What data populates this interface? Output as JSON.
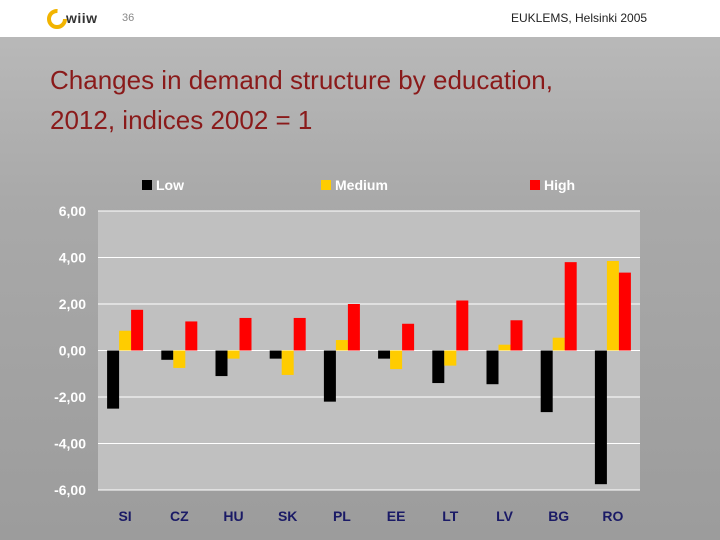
{
  "header": {
    "logo_text": "wiiw",
    "page_number": "36",
    "conference": "EUKLEMS, Helsinki 2005"
  },
  "slide": {
    "title_line1": "Changes in demand structure by education,",
    "title_line2": "2012, indices 2002 = 1"
  },
  "colors": {
    "low": "#000000",
    "medium": "#ffcc00",
    "high": "#ff0000",
    "plot_bg": "#c0c0c0",
    "gridline": "#ffffff",
    "title": "#8a1a1a",
    "label_white": "#ffffff",
    "label_dark": "#1a1a66"
  },
  "chart_data": {
    "type": "bar",
    "title": "",
    "xlabel": "",
    "ylabel": "",
    "categories": [
      "SI",
      "CZ",
      "HU",
      "SK",
      "PL",
      "EE",
      "LT",
      "LV",
      "BG",
      "RO"
    ],
    "series": [
      {
        "name": "Low",
        "color": "#000000",
        "values": [
          -2.5,
          -0.4,
          -1.1,
          -0.35,
          -2.2,
          -0.35,
          -1.4,
          -1.45,
          -2.65,
          -5.75
        ]
      },
      {
        "name": "Medium",
        "color": "#ffcc00",
        "values": [
          0.85,
          -0.75,
          -0.35,
          -1.05,
          0.45,
          -0.8,
          -0.65,
          0.25,
          0.55,
          3.85
        ]
      },
      {
        "name": "High",
        "color": "#ff0000",
        "values": [
          1.75,
          1.25,
          1.4,
          1.4,
          2.0,
          1.15,
          2.15,
          1.3,
          3.8,
          3.35
        ]
      }
    ],
    "ylim": [
      -6,
      6
    ],
    "yticks": [
      "6,00",
      "4,00",
      "2,00",
      "0,00",
      "-2,00",
      "-4,00",
      "-6,00"
    ],
    "ytick_values": [
      6,
      4,
      2,
      0,
      -2,
      -4,
      -6
    ],
    "grid": true,
    "legend_position": "top"
  }
}
